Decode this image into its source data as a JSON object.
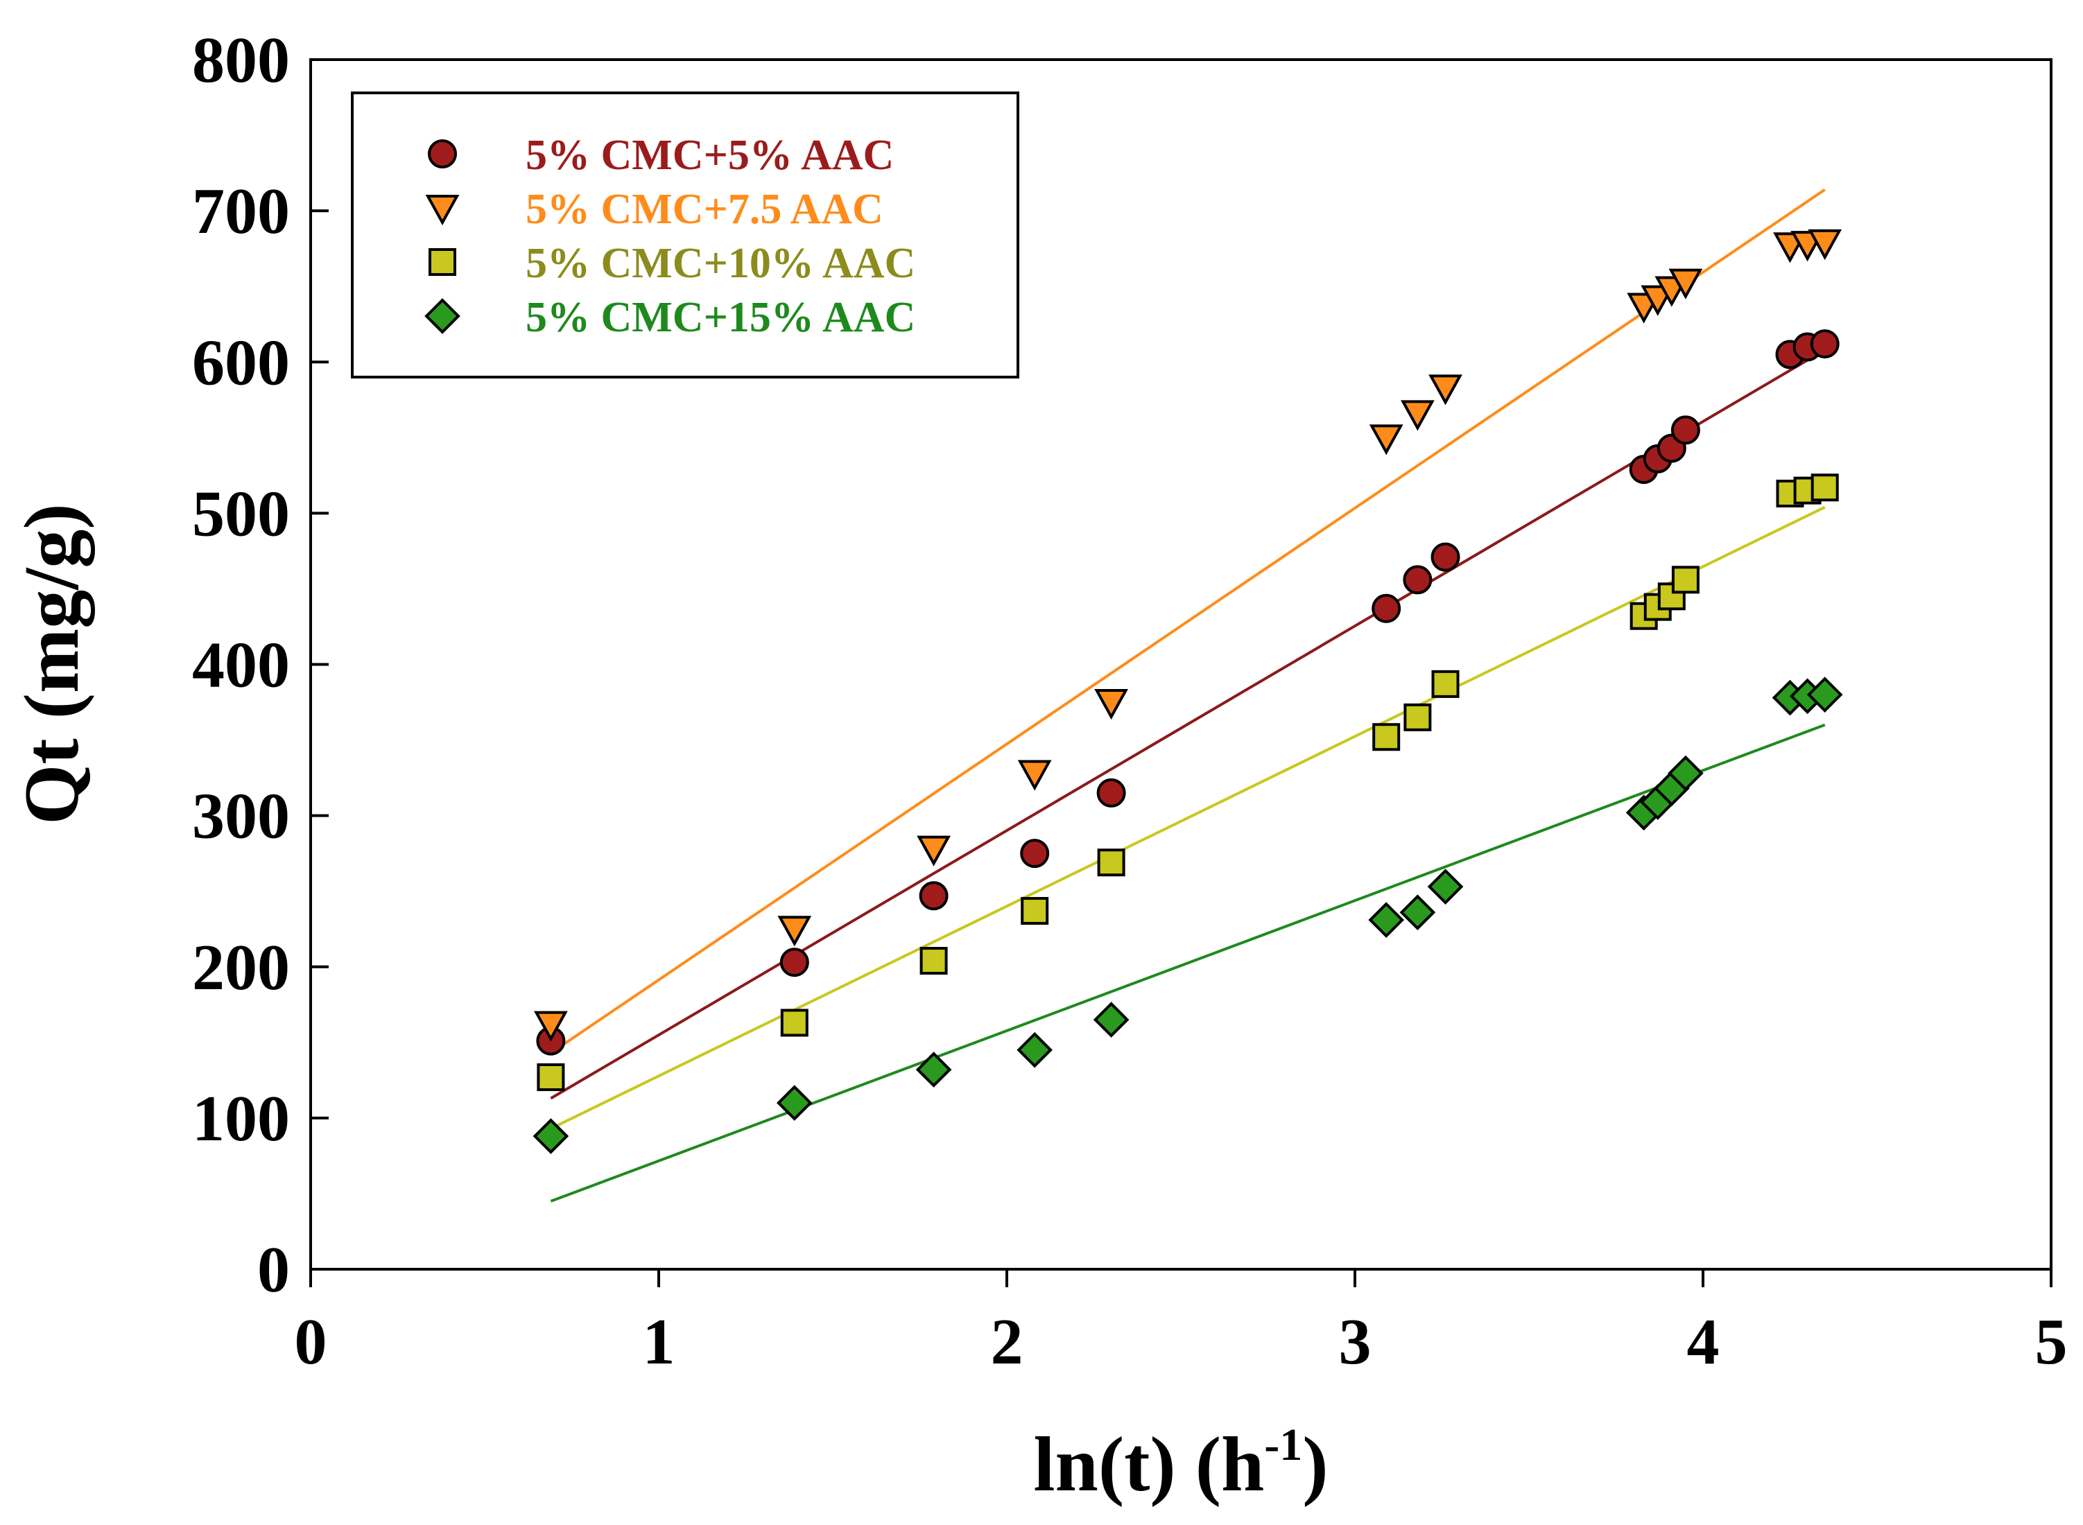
{
  "chart_data": {
    "type": "scatter",
    "title": "",
    "xlabel": "ln(t) (h",
    "xlabel_sup": "-1",
    "xlabel_close": ")",
    "ylabel": "Qt (mg/g)",
    "xlim": [
      0,
      5
    ],
    "ylim": [
      0,
      800
    ],
    "xticks": [
      0,
      1,
      2,
      3,
      4,
      5
    ],
    "yticks": [
      0,
      100,
      200,
      300,
      400,
      500,
      600,
      700,
      800
    ],
    "grid": false,
    "legend_position": "top-left",
    "series": [
      {
        "name": "5% CMC+5% AAC",
        "marker": "circle",
        "color": "#a01c1c",
        "line_color": "#8b1a1a",
        "label_color": "#9b1c1c",
        "x": [
          0.69,
          1.39,
          1.79,
          2.08,
          2.3,
          3.09,
          3.18,
          3.26,
          3.83,
          3.87,
          3.91,
          3.95,
          4.25,
          4.3,
          4.35
        ],
        "y": [
          151,
          203,
          247,
          275,
          315,
          437,
          456,
          471,
          529,
          536,
          543,
          555,
          605,
          610,
          612
        ],
        "fit": {
          "x": [
            0.69,
            4.35
          ],
          "y": [
            113,
            608
          ]
        }
      },
      {
        "name": "5% CMC+7.5 AAC",
        "marker": "triangle-down",
        "color": "#ff8c1a",
        "line_color": "#ff8c1a",
        "label_color": "#ff8c1a",
        "x": [
          0.69,
          1.39,
          1.79,
          2.08,
          2.3,
          3.09,
          3.18,
          3.26,
          3.83,
          3.87,
          3.91,
          3.95,
          4.25,
          4.3,
          4.35
        ],
        "y": [
          162,
          225,
          278,
          328,
          375,
          550,
          566,
          583,
          637,
          642,
          648,
          653,
          677,
          678,
          679
        ],
        "fit": {
          "x": [
            0.69,
            4.35
          ],
          "y": [
            143,
            714
          ]
        }
      },
      {
        "name": "5% CMC+10% AAC",
        "marker": "square",
        "color": "#c8c81e",
        "line_color": "#c8c81e",
        "label_color": "#8c8c1e",
        "x": [
          0.69,
          1.39,
          1.79,
          2.08,
          2.3,
          3.09,
          3.18,
          3.26,
          3.83,
          3.87,
          3.91,
          3.95,
          4.25,
          4.3,
          4.35
        ],
        "y": [
          127,
          163,
          204,
          237,
          269,
          352,
          365,
          387,
          432,
          438,
          445,
          456,
          513,
          515,
          517
        ],
        "fit": {
          "x": [
            0.69,
            4.35
          ],
          "y": [
            93,
            504
          ]
        }
      },
      {
        "name": "5% CMC+15% AAC",
        "marker": "diamond",
        "color": "#2a9a1e",
        "line_color": "#1e8a1e",
        "label_color": "#1e8a1e",
        "x": [
          0.69,
          1.39,
          1.79,
          2.08,
          2.3,
          3.09,
          3.18,
          3.26,
          3.83,
          3.87,
          3.91,
          3.95,
          4.25,
          4.3,
          4.35
        ],
        "y": [
          88,
          110,
          132,
          145,
          165,
          231,
          236,
          253,
          302,
          309,
          318,
          328,
          378,
          379,
          380
        ],
        "fit": {
          "x": [
            0.69,
            4.35
          ],
          "y": [
            45,
            360
          ]
        }
      }
    ]
  }
}
